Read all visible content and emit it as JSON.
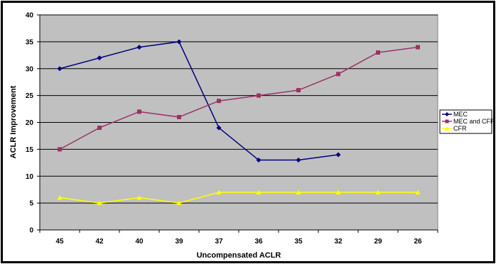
{
  "chart_data": {
    "type": "line",
    "title": "",
    "xlabel": "Uncompensated ACLR",
    "ylabel": "ACLR Improvement",
    "categories": [
      "45",
      "42",
      "40",
      "39",
      "37",
      "36",
      "35",
      "32",
      "29",
      "26"
    ],
    "ylim": [
      0,
      40
    ],
    "yticks": [
      0,
      5,
      10,
      15,
      20,
      25,
      30,
      35,
      40
    ],
    "grid": true,
    "legend_position": "right",
    "colors": {
      "plot_background": "#c0c0c0",
      "gridline": "#000000"
    },
    "series": [
      {
        "name": "MEC",
        "color": "#000080",
        "marker": "diamond",
        "values": [
          30,
          32,
          34,
          35,
          19,
          13,
          13,
          14,
          null,
          null
        ]
      },
      {
        "name": "MEC and CFR",
        "color": "#993366",
        "marker": "square",
        "values": [
          15,
          19,
          22,
          21,
          24,
          25,
          26,
          29,
          33,
          34
        ]
      },
      {
        "name": "CFR",
        "color": "#ffff00",
        "marker": "triangle",
        "values": [
          6,
          5,
          6,
          5,
          7,
          7,
          7,
          7,
          7,
          7
        ]
      }
    ]
  }
}
